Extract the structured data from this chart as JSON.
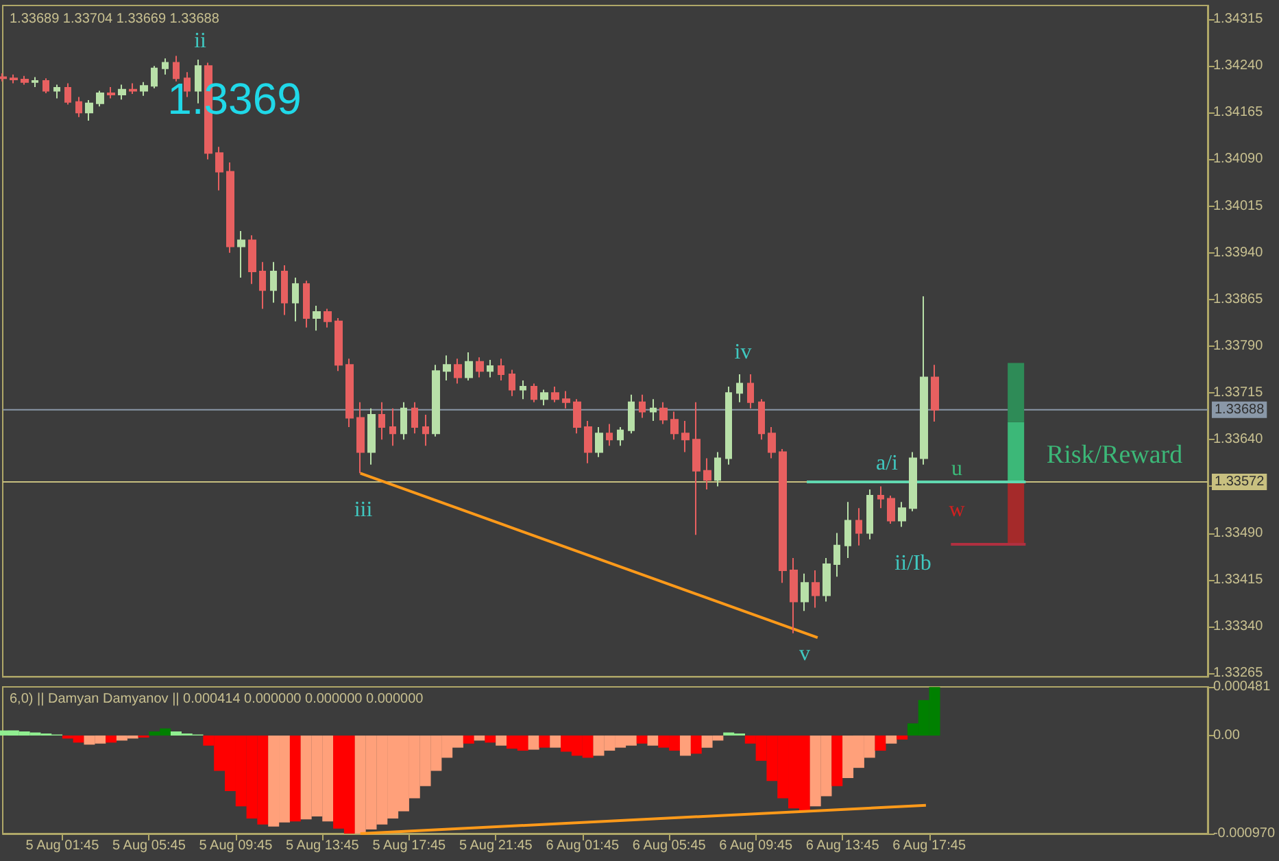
{
  "chart_data": [
    {
      "type": "candlestick",
      "title": "1.33689 1.33704 1.33669 1.33688",
      "tick_labels": "y",
      "marker": "none",
      "x": [
        "--08-04T23:00",
        "--08-04T23:30",
        "--08-05T00:00",
        "--08-05T00:30",
        "--08-05T01:00",
        "--08-05T01:30",
        "--08-05T02:00",
        "--08-05T02:30",
        "--08-05T03:00",
        "--08-05T03:30",
        "--08-05T04:00",
        "--08-05T04:30",
        "--08-05T05:00",
        "--08-05T05:30",
        "--08-05T06:00",
        "--08-05T06:30",
        "--08-05T07:00",
        "--08-05T07:30",
        "--08-05T08:00",
        "--08-05T08:30",
        "--08-05T09:00",
        "--08-05T09:30",
        "--08-05T10:00",
        "--08-05T10:30",
        "--08-05T11:00",
        "--08-05T11:30",
        "--08-05T12:00",
        "--08-05T12:30",
        "--08-05T13:00",
        "--08-05T13:30",
        "--08-05T14:00",
        "--08-05T14:30",
        "--08-05T15:00",
        "--08-05T15:30",
        "--08-05T16:00",
        "--08-05T16:30",
        "--08-05T17:00",
        "--08-05T17:30",
        "--08-05T18:00",
        "--08-05T18:30",
        "--08-05T19:00",
        "--08-05T19:30",
        "--08-05T20:00",
        "--08-05T20:30",
        "--08-05T21:00",
        "--08-05T21:30",
        "--08-05T22:00",
        "--08-05T22:30",
        "--08-05T23:00",
        "--08-05T23:30",
        "--08-06T00:00",
        "--08-06T00:30",
        "--08-06T01:00",
        "--08-06T01:30",
        "--08-06T02:00",
        "--08-06T02:30",
        "--08-06T03:00",
        "--08-06T03:30",
        "--08-06T04:00",
        "--08-06T04:30",
        "--08-06T05:00",
        "--08-06T05:30",
        "--08-06T06:00",
        "--08-06T06:30",
        "--08-06T07:00",
        "--08-06T07:30",
        "--08-06T08:00",
        "--08-06T08:30",
        "--08-06T09:00",
        "--08-06T09:30",
        "--08-06T10:00",
        "--08-06T10:30",
        "--08-06T11:00",
        "--08-06T11:30",
        "--08-06T12:00",
        "--08-06T12:30",
        "--08-06T13:00",
        "--08-06T13:30",
        "--08-06T14:00",
        "--08-06T14:30",
        "--08-06T15:00",
        "--08-06T15:30",
        "--08-06T16:00",
        "--08-06T16:30",
        "--08-06T17:00",
        "--08-06T17:30",
        "--08-06T18:00"
      ],
      "ohlc": [
        [
          1.34222,
          1.34228,
          1.34215,
          1.3422
        ],
        [
          1.3422,
          1.34226,
          1.34212,
          1.34218
        ],
        [
          1.34218,
          1.34224,
          1.3421,
          1.34214
        ],
        [
          1.34214,
          1.34222,
          1.34206,
          1.34216
        ],
        [
          1.34216,
          1.3422,
          1.34196,
          1.342
        ],
        [
          1.342,
          1.3421,
          1.34188,
          1.34205
        ],
        [
          1.34205,
          1.34212,
          1.34178,
          1.34182
        ],
        [
          1.34182,
          1.3419,
          1.34158,
          1.34165
        ],
        [
          1.34165,
          1.34185,
          1.34152,
          1.3418
        ],
        [
          1.3418,
          1.342,
          1.34175,
          1.34196
        ],
        [
          1.34196,
          1.34206,
          1.34188,
          1.34194
        ],
        [
          1.34194,
          1.3421,
          1.34186,
          1.34202
        ],
        [
          1.34202,
          1.34212,
          1.34195,
          1.342
        ],
        [
          1.342,
          1.34214,
          1.34192,
          1.34208
        ],
        [
          1.34208,
          1.3424,
          1.34204,
          1.34236
        ],
        [
          1.34236,
          1.34252,
          1.34226,
          1.34245
        ],
        [
          1.34245,
          1.34256,
          1.34215,
          1.3422
        ],
        [
          1.3422,
          1.3423,
          1.3419,
          1.342
        ],
        [
          1.342,
          1.3425,
          1.3418,
          1.3424
        ],
        [
          1.3424,
          1.34245,
          1.3409,
          1.341
        ],
        [
          1.341,
          1.3411,
          1.3404,
          1.3407
        ],
        [
          1.3407,
          1.34085,
          1.3394,
          1.3395
        ],
        [
          1.3395,
          1.33975,
          1.339,
          1.3396
        ],
        [
          1.3396,
          1.33968,
          1.3389,
          1.3391
        ],
        [
          1.3391,
          1.33925,
          1.3385,
          1.3388
        ],
        [
          1.3388,
          1.33925,
          1.3386,
          1.3391
        ],
        [
          1.3391,
          1.3392,
          1.3384,
          1.3386
        ],
        [
          1.3386,
          1.339,
          1.3383,
          1.3389
        ],
        [
          1.3389,
          1.33895,
          1.3382,
          1.33835
        ],
        [
          1.33835,
          1.33855,
          1.33815,
          1.33845
        ],
        [
          1.33845,
          1.3385,
          1.3382,
          1.3383
        ],
        [
          1.3383,
          1.33835,
          1.3375,
          1.3376
        ],
        [
          1.3376,
          1.3377,
          1.3366,
          1.33675
        ],
        [
          1.33675,
          1.337,
          1.33586,
          1.3362
        ],
        [
          1.3362,
          1.3369,
          1.336,
          1.3368
        ],
        [
          1.3368,
          1.337,
          1.3364,
          1.3366
        ],
        [
          1.3366,
          1.3369,
          1.3363,
          1.3365
        ],
        [
          1.3365,
          1.337,
          1.3364,
          1.3369
        ],
        [
          1.3369,
          1.337,
          1.3365,
          1.3366
        ],
        [
          1.3366,
          1.3368,
          1.3363,
          1.3365
        ],
        [
          1.3365,
          1.3376,
          1.33645,
          1.3375
        ],
        [
          1.3375,
          1.33775,
          1.33735,
          1.3376
        ],
        [
          1.3376,
          1.3377,
          1.3373,
          1.3374
        ],
        [
          1.3374,
          1.3378,
          1.33735,
          1.33765
        ],
        [
          1.33765,
          1.33772,
          1.3374,
          1.3375
        ],
        [
          1.3375,
          1.33768,
          1.3374,
          1.33758
        ],
        [
          1.33758,
          1.3377,
          1.33735,
          1.33745
        ],
        [
          1.33745,
          1.33752,
          1.3371,
          1.3372
        ],
        [
          1.3372,
          1.33735,
          1.33705,
          1.33725
        ],
        [
          1.33725,
          1.3373,
          1.337,
          1.33705
        ],
        [
          1.33705,
          1.3372,
          1.33695,
          1.33715
        ],
        [
          1.33715,
          1.33725,
          1.337,
          1.33705
        ],
        [
          1.33705,
          1.33718,
          1.3369,
          1.337
        ],
        [
          1.337,
          1.33705,
          1.3365,
          1.3366
        ],
        [
          1.3366,
          1.3367,
          1.33602,
          1.3362
        ],
        [
          1.3362,
          1.3366,
          1.33612,
          1.3365
        ],
        [
          1.3365,
          1.33665,
          1.3363,
          1.3364
        ],
        [
          1.3364,
          1.3366,
          1.3363,
          1.33655
        ],
        [
          1.33655,
          1.33712,
          1.3365,
          1.337
        ],
        [
          1.337,
          1.33712,
          1.33675,
          1.33685
        ],
        [
          1.33685,
          1.33705,
          1.3367,
          1.3369
        ],
        [
          1.3369,
          1.337,
          1.33665,
          1.33672
        ],
        [
          1.33672,
          1.33685,
          1.3364,
          1.3365
        ],
        [
          1.3365,
          1.3367,
          1.3362,
          1.3364
        ],
        [
          1.3364,
          1.337,
          1.33487,
          1.3359
        ],
        [
          1.3359,
          1.3361,
          1.3356,
          1.33575
        ],
        [
          1.33575,
          1.3362,
          1.33565,
          1.3361
        ],
        [
          1.3361,
          1.33725,
          1.336,
          1.33715
        ],
        [
          1.33715,
          1.33745,
          1.337,
          1.3373
        ],
        [
          1.3373,
          1.33745,
          1.3369,
          1.337
        ],
        [
          1.337,
          1.33705,
          1.3364,
          1.3365
        ],
        [
          1.3365,
          1.3366,
          1.3361,
          1.3362
        ],
        [
          1.3362,
          1.33625,
          1.3341,
          1.3343
        ],
        [
          1.3343,
          1.3345,
          1.33329,
          1.3338
        ],
        [
          1.3338,
          1.33425,
          1.33365,
          1.3341
        ],
        [
          1.3341,
          1.3343,
          1.3337,
          1.3339
        ],
        [
          1.3339,
          1.3345,
          1.3338,
          1.3344
        ],
        [
          1.3344,
          1.3349,
          1.3342,
          1.3347
        ],
        [
          1.3347,
          1.3354,
          1.3345,
          1.3351
        ],
        [
          1.3351,
          1.3353,
          1.3347,
          1.3349
        ],
        [
          1.3349,
          1.3356,
          1.3348,
          1.3355
        ],
        [
          1.3355,
          1.33565,
          1.3353,
          1.33545
        ],
        [
          1.33545,
          1.3355,
          1.33505,
          1.3351
        ],
        [
          1.3351,
          1.3354,
          1.335,
          1.3353
        ],
        [
          1.3353,
          1.3362,
          1.33525,
          1.3361
        ],
        [
          1.3361,
          1.3387,
          1.336,
          1.3374
        ],
        [
          1.3374,
          1.3376,
          1.33669,
          1.33688
        ]
      ],
      "colors": [
        "#e86060",
        "#e86060",
        "#e86060",
        "#b8e0a8",
        "#e86060",
        "#b8e0a8",
        "#e86060",
        "#e86060",
        "#b8e0a8",
        "#b8e0a8",
        "#e86060",
        "#b8e0a8",
        "#e86060",
        "#b8e0a8",
        "#b8e0a8",
        "#b8e0a8",
        "#e86060",
        "#e86060",
        "#b8e0a8",
        "#e86060",
        "#e86060",
        "#e86060",
        "#b8e0a8",
        "#e86060",
        "#e86060",
        "#b8e0a8",
        "#e86060",
        "#b8e0a8",
        "#e86060",
        "#b8e0a8",
        "#e86060",
        "#e86060",
        "#e86060",
        "#e86060",
        "#b8e0a8",
        "#e86060",
        "#e86060",
        "#b8e0a8",
        "#e86060",
        "#e86060",
        "#b8e0a8",
        "#b8e0a8",
        "#e86060",
        "#b8e0a8",
        "#e86060",
        "#b8e0a8",
        "#e86060",
        "#e86060",
        "#b8e0a8",
        "#e86060",
        "#b8e0a8",
        "#e86060",
        "#e86060",
        "#e86060",
        "#e86060",
        "#b8e0a8",
        "#e86060",
        "#b8e0a8",
        "#b8e0a8",
        "#e86060",
        "#b8e0a8",
        "#e86060",
        "#e86060",
        "#e86060",
        "#e86060",
        "#e86060",
        "#b8e0a8",
        "#b8e0a8",
        "#b8e0a8",
        "#e86060",
        "#e86060",
        "#e86060",
        "#e86060",
        "#e86060",
        "#b8e0a8",
        "#e86060",
        "#b8e0a8",
        "#b8e0a8",
        "#b8e0a8",
        "#e86060",
        "#b8e0a8",
        "#e86060",
        "#e86060",
        "#b8e0a8",
        "#b8e0a8",
        "#b8e0a8",
        "#e86060"
      ],
      "series": [
        {
          "type": "line",
          "color": "#ff9a1a",
          "x": [
            "--08-05T15:30",
            "--08-06T12:36"
          ],
          "values": [
            1.33586,
            1.33322
          ]
        },
        {
          "type": "line",
          "color": "#60d8b0",
          "x": [
            "--08-06T12:06",
            "--08-06T22:12"
          ],
          "values": [
            1.33572,
            1.33572
          ]
        },
        {
          "type": "line",
          "color": "#b03040",
          "x": [
            "--08-06T18:45",
            "--08-06T22:12"
          ],
          "values": [
            1.33472,
            1.33472
          ]
        },
        {
          "type": "bar",
          "color": "#a52a2a",
          "x": [
            "--08-06T21:45"
          ],
          "base": [
            1.33472
          ],
          "values": [
            0.00099
          ]
        },
        {
          "type": "bar",
          "color": "#3cb878",
          "x": [
            "--08-06T21:45"
          ],
          "base": [
            1.33571
          ],
          "values": [
            0.00097
          ]
        },
        {
          "type": "bar",
          "color": "#2e8b57",
          "x": [
            "--08-06T21:45"
          ],
          "base": [
            1.33668
          ],
          "values": [
            0.00095
          ]
        }
      ],
      "ref_lines": [
        {
          "axis": "y",
          "value": 1.33688,
          "label": "1.33688",
          "color": "#8a98a8"
        },
        {
          "axis": "y",
          "value": 1.33572,
          "label": "1.33572",
          "color": "#c8c080"
        }
      ],
      "annotations": [
        "ii",
        "1.3369",
        "iii",
        "iv",
        "v",
        "a/i",
        "ii/Ib",
        "u",
        "w",
        "Risk/Reward"
      ],
      "xlim": [
        "--08-04T23:00",
        "--08-07T06:36"
      ],
      "ylim": [
        1.33259,
        1.34337
      ],
      "yticks": [
        {
          "value": 1.33265,
          "label": "1.33265"
        },
        {
          "value": 1.3334,
          "label": "1.33340"
        },
        {
          "value": 1.33415,
          "label": "1.33415"
        },
        {
          "value": 1.3349,
          "label": "1.33490"
        },
        {
          "value": 1.33565,
          "label": null
        },
        {
          "value": 1.3364,
          "label": "1.33640"
        },
        {
          "value": 1.33715,
          "label": "1.33715"
        },
        {
          "value": 1.3379,
          "label": "1.33790"
        },
        {
          "value": 1.33865,
          "label": "1.33865"
        },
        {
          "value": 1.3394,
          "label": "1.33940"
        },
        {
          "value": 1.34015,
          "label": "1.34015"
        },
        {
          "value": 1.3409,
          "label": "1.34090"
        },
        {
          "value": 1.34165,
          "label": "1.34165"
        },
        {
          "value": 1.3424,
          "label": "1.34240"
        },
        {
          "value": 1.34315,
          "label": "1.34315"
        }
      ]
    },
    {
      "type": "bar",
      "title": "6,0) || Damyan Damyanov || 0.000414 0.000000 0.000000 0.000000",
      "marker": "none",
      "x": [
        "--08-04T23:00",
        "--08-04T23:30",
        "--08-05T00:00",
        "--08-05T00:30",
        "--08-05T01:00",
        "--08-05T01:30",
        "--08-05T02:00",
        "--08-05T02:30",
        "--08-05T03:00",
        "--08-05T03:30",
        "--08-05T04:00",
        "--08-05T04:30",
        "--08-05T05:00",
        "--08-05T05:30",
        "--08-05T06:00",
        "--08-05T06:30",
        "--08-05T07:00",
        "--08-05T07:30",
        "--08-05T08:00",
        "--08-05T08:30",
        "--08-05T09:00",
        "--08-05T09:30",
        "--08-05T10:00",
        "--08-05T10:30",
        "--08-05T11:00",
        "--08-05T11:30",
        "--08-05T12:00",
        "--08-05T12:30",
        "--08-05T13:00",
        "--08-05T13:30",
        "--08-05T14:00",
        "--08-05T14:30",
        "--08-05T15:00",
        "--08-05T15:30",
        "--08-05T16:00",
        "--08-05T16:30",
        "--08-05T17:00",
        "--08-05T17:30",
        "--08-05T18:00",
        "--08-05T18:30",
        "--08-05T19:00",
        "--08-05T19:30",
        "--08-05T20:00",
        "--08-05T20:30",
        "--08-05T21:00",
        "--08-05T21:30",
        "--08-05T22:00",
        "--08-05T22:30",
        "--08-05T23:00",
        "--08-05T23:30",
        "--08-06T00:00",
        "--08-06T00:30",
        "--08-06T01:00",
        "--08-06T01:30",
        "--08-06T02:00",
        "--08-06T02:30",
        "--08-06T03:00",
        "--08-06T03:30",
        "--08-06T04:00",
        "--08-06T04:30",
        "--08-06T05:00",
        "--08-06T05:30",
        "--08-06T06:00",
        "--08-06T06:30",
        "--08-06T07:00",
        "--08-06T07:30",
        "--08-06T08:00",
        "--08-06T08:30",
        "--08-06T09:00",
        "--08-06T09:30",
        "--08-06T10:00",
        "--08-06T10:30",
        "--08-06T11:00",
        "--08-06T11:30",
        "--08-06T12:00",
        "--08-06T12:30",
        "--08-06T13:00",
        "--08-06T13:30",
        "--08-06T14:00",
        "--08-06T14:30",
        "--08-06T15:00",
        "--08-06T15:30",
        "--08-06T16:00",
        "--08-06T16:30",
        "--08-06T17:00",
        "--08-06T17:30",
        "--08-06T18:00"
      ],
      "values": [
        5e-05,
        5e-05,
        4e-05,
        3e-05,
        2e-05,
        1e-05,
        -3e-05,
        -7e-05,
        -9e-05,
        -8e-05,
        -7e-05,
        -5e-05,
        -3e-05,
        -2e-05,
        4e-05,
        7e-05,
        4e-05,
        2e-05,
        1e-05,
        -0.0001,
        -0.00035,
        -0.00055,
        -0.0007,
        -0.00082,
        -0.00088,
        -0.0009,
        -0.00086,
        -0.00085,
        -0.00083,
        -0.0008,
        -0.00085,
        -0.00092,
        -0.00097,
        -0.00097,
        -0.00093,
        -0.00088,
        -0.00082,
        -0.00075,
        -0.00062,
        -0.0005,
        -0.00035,
        -0.00022,
        -0.00012,
        -8e-05,
        -5e-05,
        -7e-05,
        -0.0001,
        -0.00013,
        -0.00015,
        -0.00014,
        -0.00012,
        -0.00012,
        -0.00016,
        -0.0002,
        -0.00022,
        -0.0002,
        -0.00015,
        -0.00012,
        -0.0001,
        -8e-05,
        -0.0001,
        -0.00012,
        -0.00015,
        -0.0002,
        -0.00018,
        -0.00012,
        -5e-05,
        3e-05,
        2e-05,
        -8e-05,
        -0.00025,
        -0.00045,
        -0.00062,
        -0.00072,
        -0.00075,
        -0.0007,
        -0.0006,
        -0.0005,
        -0.00042,
        -0.00032,
        -0.00022,
        -0.00015,
        -8e-05,
        -4e-05,
        0.00012,
        0.00035,
        0.00048
      ],
      "colors": [
        "#90ee90",
        "#90ee90",
        "#90ee90",
        "#90ee90",
        "#90ee90",
        "#90ee90",
        "#ff0000",
        "#ff0000",
        "#ffa07a",
        "#ffa07a",
        "#ff0000",
        "#ffa07a",
        "#ffa07a",
        "#ff0000",
        "#008000",
        "#008000",
        "#90ee90",
        "#90ee90",
        "#90ee90",
        "#ff0000",
        "#ff0000",
        "#ff0000",
        "#ff0000",
        "#ff0000",
        "#ff0000",
        "#ffa07a",
        "#ffa07a",
        "#ff0000",
        "#ffa07a",
        "#ffa07a",
        "#ffa07a",
        "#ff0000",
        "#ff0000",
        "#ffa07a",
        "#ffa07a",
        "#ffa07a",
        "#ffa07a",
        "#ffa07a",
        "#ffa07a",
        "#ffa07a",
        "#ffa07a",
        "#ffa07a",
        "#ffa07a",
        "#ff0000",
        "#ffa07a",
        "#ff0000",
        "#ffa07a",
        "#ff0000",
        "#ff0000",
        "#ffa07a",
        "#ff0000",
        "#ffa07a",
        "#ff0000",
        "#ff0000",
        "#ff0000",
        "#ffa07a",
        "#ffa07a",
        "#ffa07a",
        "#ffa07a",
        "#ff0000",
        "#ffa07a",
        "#ff0000",
        "#ff0000",
        "#ffa07a",
        "#ff0000",
        "#ffa07a",
        "#ffa07a",
        "#90ee90",
        "#90ee90",
        "#ff0000",
        "#ff0000",
        "#ff0000",
        "#ff0000",
        "#ff0000",
        "#ff0000",
        "#ffa07a",
        "#ffa07a",
        "#ff0000",
        "#ffa07a",
        "#ffa07a",
        "#ffa07a",
        "#ff0000",
        "#ffa07a",
        "#ff0000",
        "#008000",
        "#008000",
        "#008000"
      ],
      "series": [
        {
          "type": "line",
          "color": "#ff9a1a",
          "x": [
            "--08-05T15:30",
            "--08-06T17:36"
          ],
          "values": [
            -0.00097,
            -0.00069
          ]
        }
      ],
      "xlim": [
        "--08-04T23:00",
        "--08-07T06:36"
      ],
      "ylim": [
        -0.00097,
        0.000481
      ],
      "yticks": [
        {
          "value": -0.00097,
          "label": "-0.000970"
        },
        {
          "value": 0,
          "label": "0.00"
        },
        0.000481
      ],
      "xticks": [
        {
          "value": "--08-05T01:45",
          "label": "5 Aug 01:45"
        },
        {
          "value": "--08-05T05:45",
          "label": "5 Aug 05:45"
        },
        {
          "value": "--08-05T09:45",
          "label": "5 Aug 09:45"
        },
        {
          "value": "--08-05T13:45",
          "label": "5 Aug 13:45"
        },
        {
          "value": "--08-05T17:45",
          "label": "5 Aug 17:45"
        },
        {
          "value": "--08-05T21:45",
          "label": "5 Aug 21:45"
        },
        {
          "value": "--08-06T01:45",
          "label": "6 Aug 01:45"
        },
        {
          "value": "--08-06T05:45",
          "label": "6 Aug 05:45"
        },
        {
          "value": "--08-06T09:45",
          "label": "6 Aug 09:45"
        },
        {
          "value": "--08-06T13:45",
          "label": "6 Aug 13:45"
        },
        {
          "value": "--08-06T17:45",
          "label": "6 Aug 17:45"
        }
      ]
    }
  ]
}
